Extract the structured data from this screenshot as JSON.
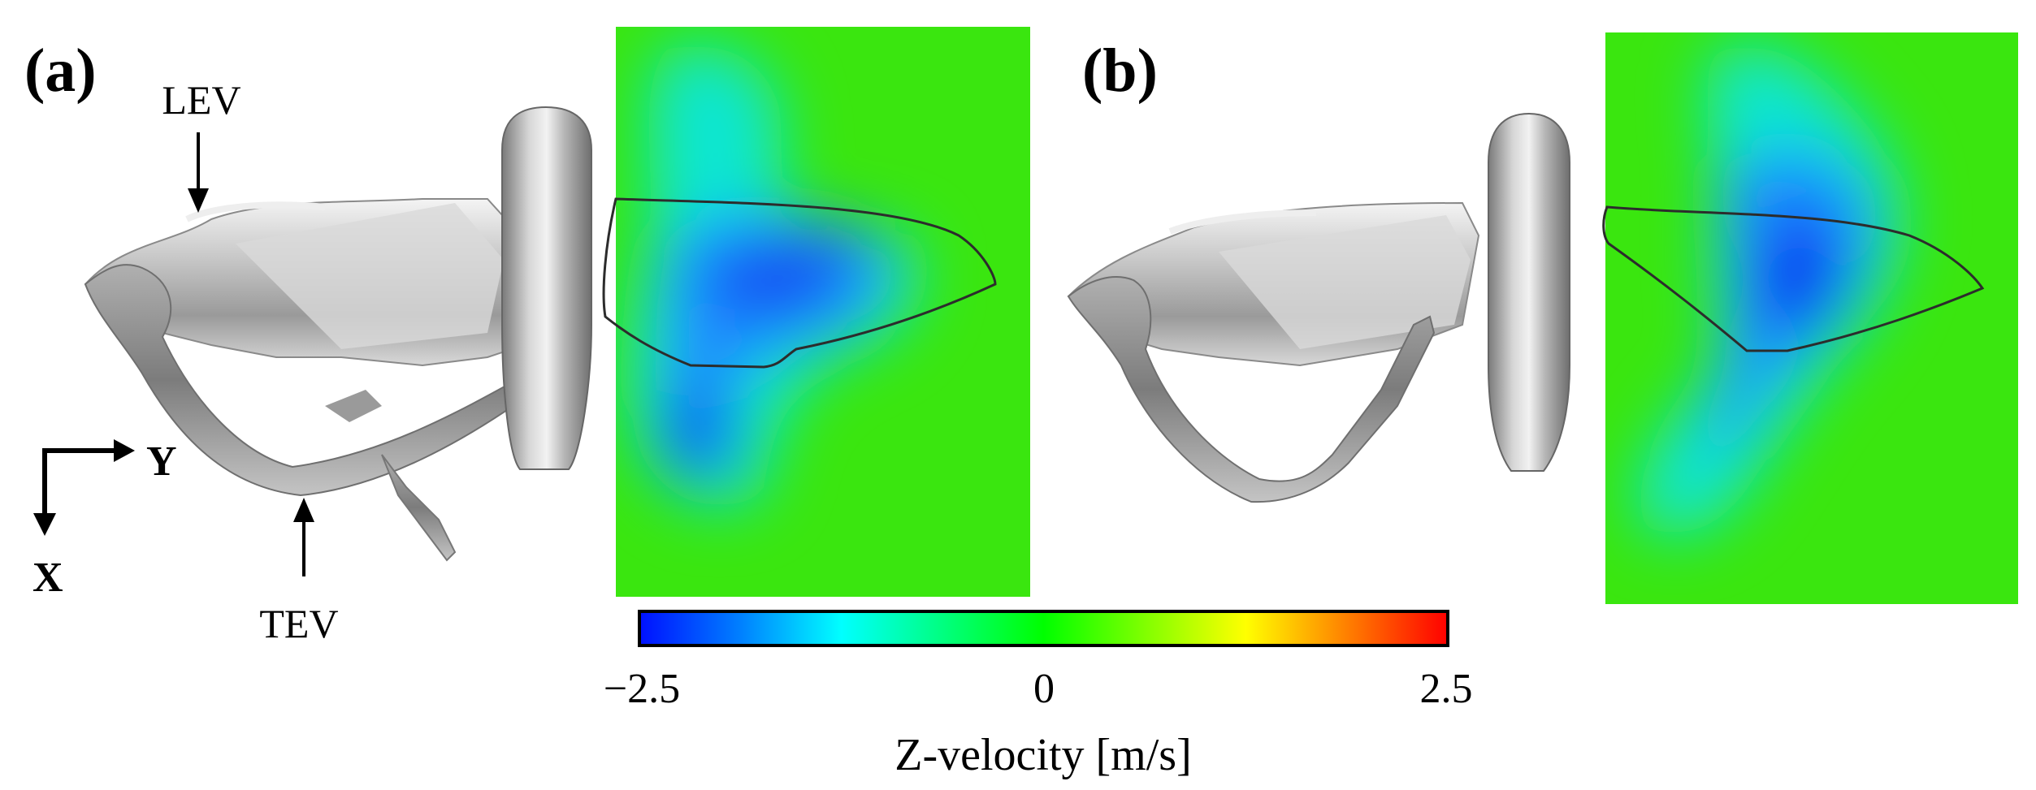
{
  "panels": [
    {
      "id": "a",
      "label": "(a)",
      "annotations": [
        "LEV",
        "TEV"
      ],
      "colors": {
        "background": "#3ae60f",
        "wake_low": "#0a3cf0",
        "wake_mid": "#1e8cff",
        "wake_edge": "#10e6d2"
      }
    },
    {
      "id": "b",
      "label": "(b)",
      "colors": {
        "background": "#3ae60f",
        "wake_low": "#0a3cf0",
        "wake_mid": "#1e8cff",
        "wake_edge": "#10e6d2"
      }
    }
  ],
  "axes_indicator": {
    "y_label": "Y",
    "x_label": "X"
  },
  "colorbar": {
    "title": "Z-velocity [m/s]",
    "min": -2.5,
    "max": 2.5,
    "tick_labels": [
      "−2.5",
      "0",
      "2.5"
    ],
    "colors": [
      "#0010ff",
      "#0080ff",
      "#00ffff",
      "#00ff80",
      "#00ff00",
      "#80ff00",
      "#ffff00",
      "#ff8000",
      "#ff0000"
    ]
  }
}
